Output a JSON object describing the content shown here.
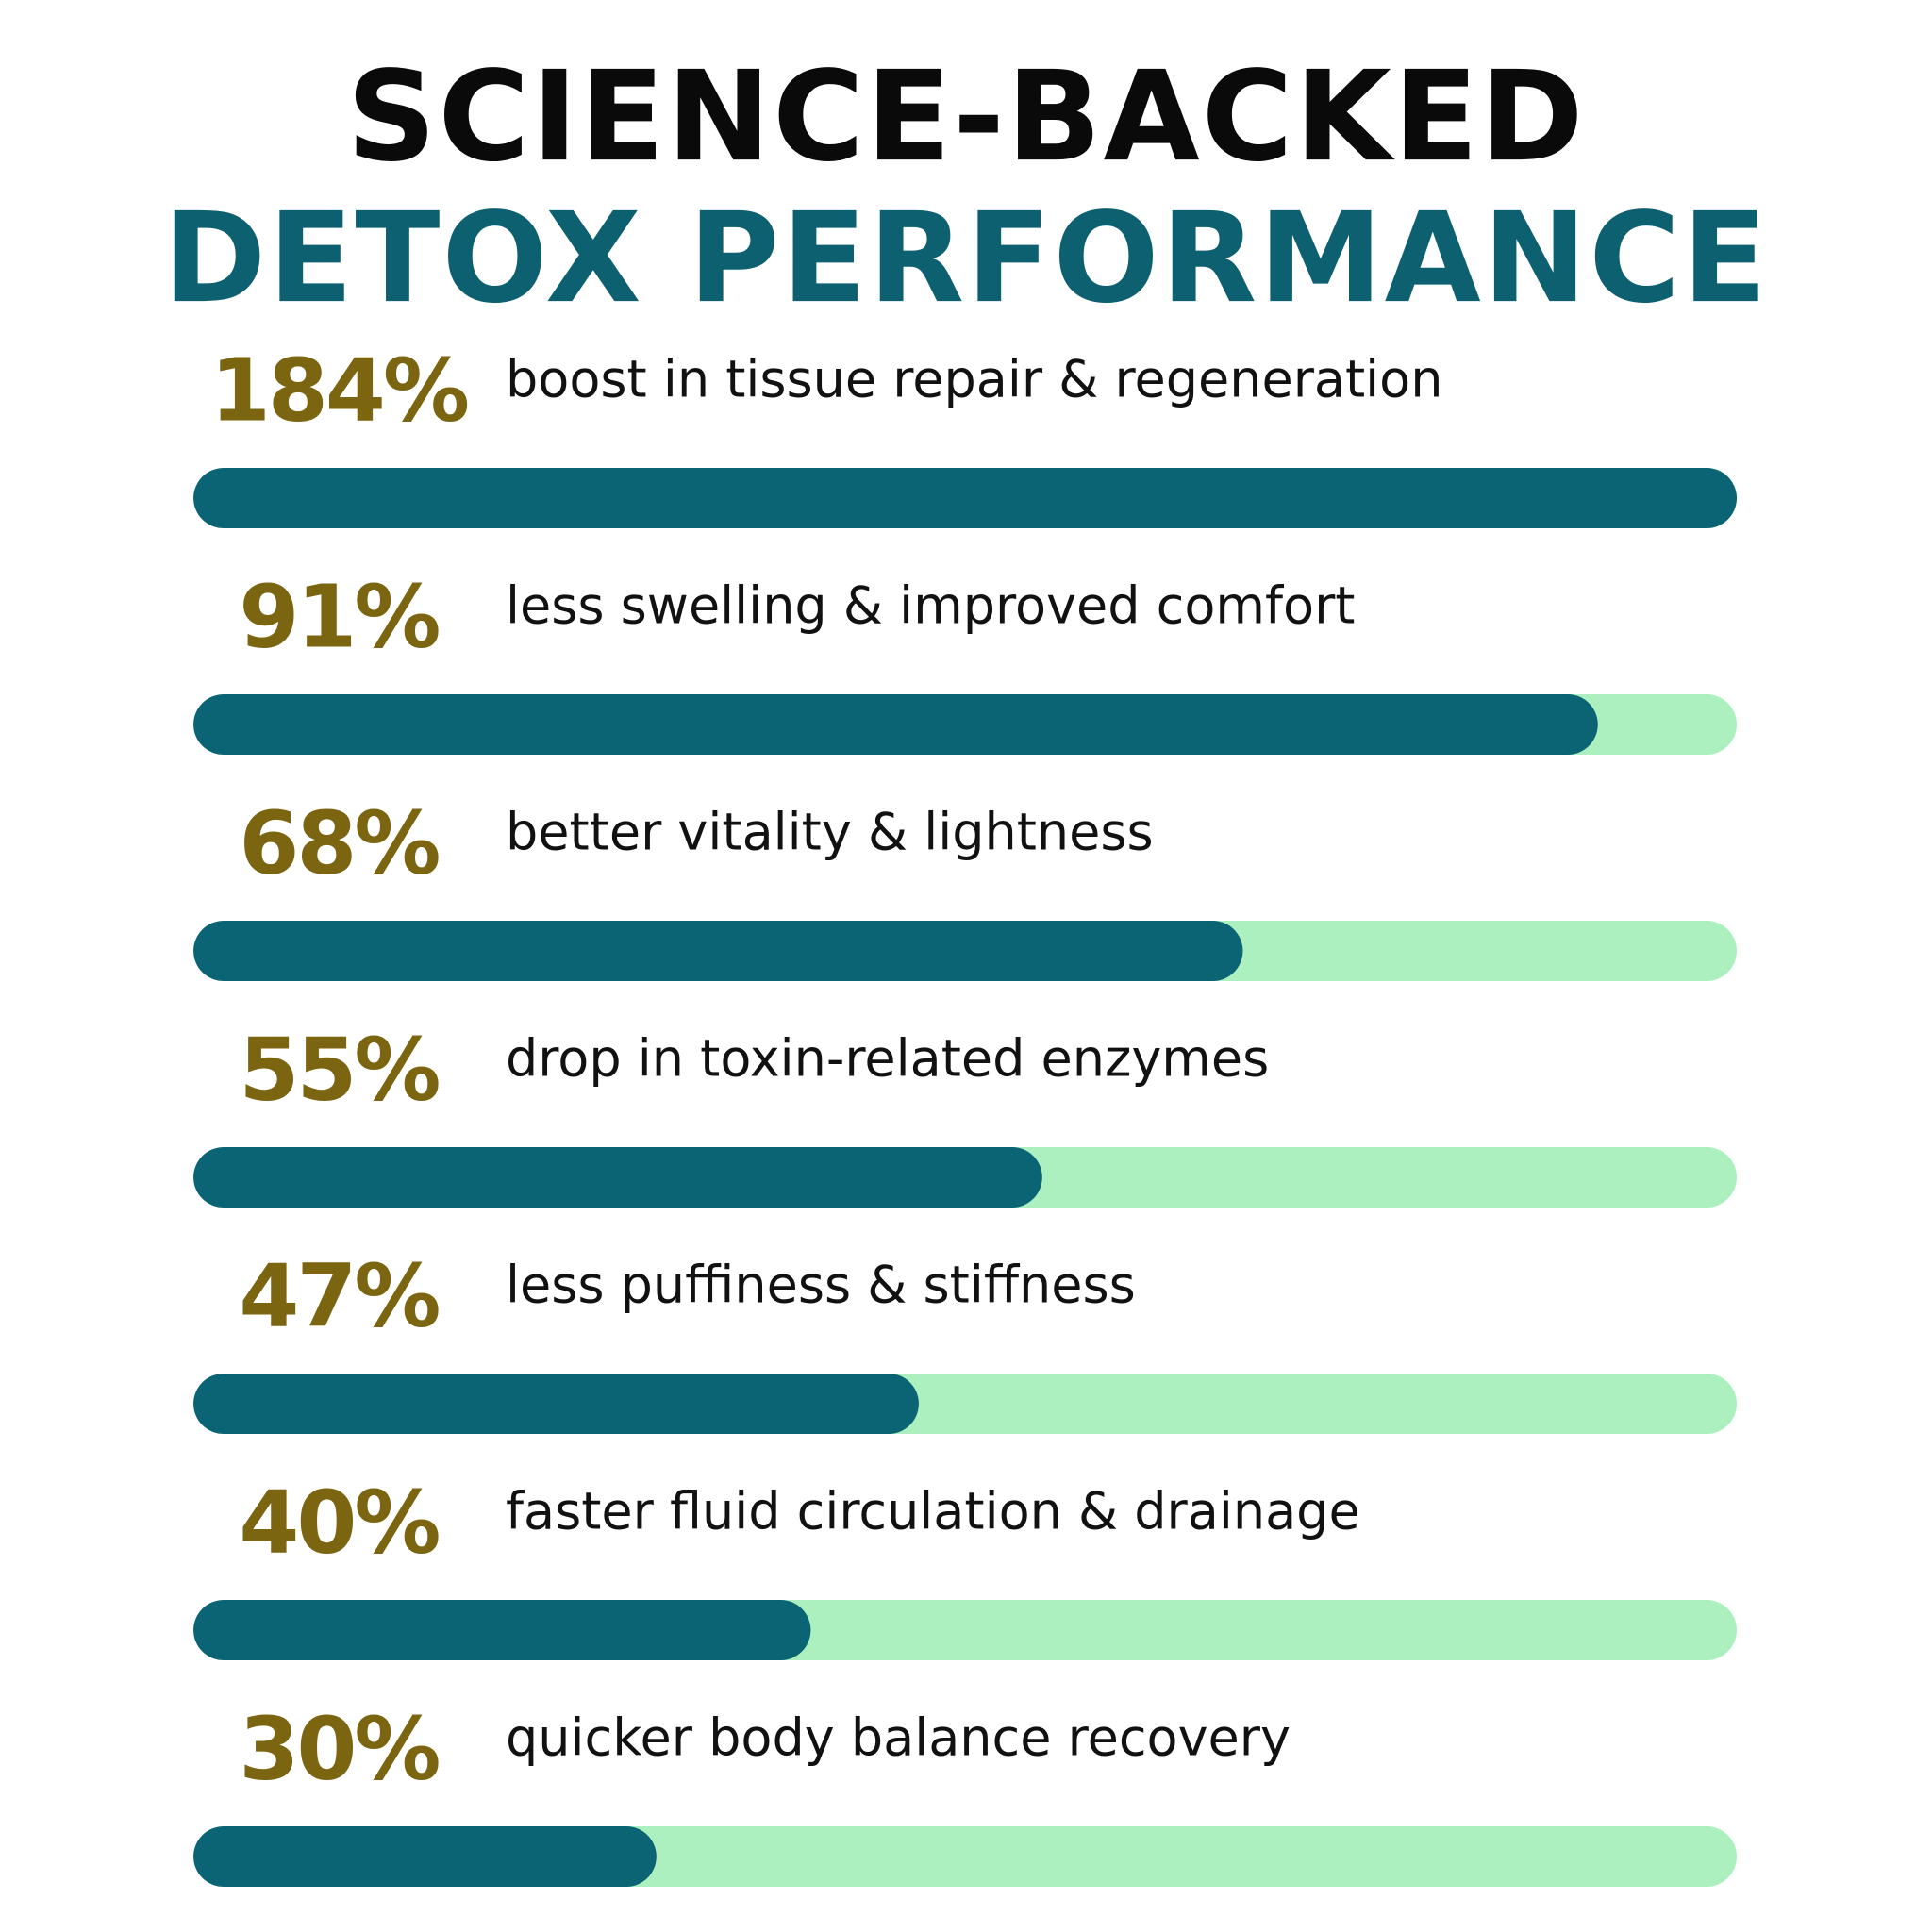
{
  "chart_data": {
    "type": "bar",
    "orientation": "horizontal",
    "title": "SCIENCE-BACKED",
    "subtitle": "DETOX PERFORMANCE",
    "categories": [
      "boost in tissue repair & regeneration",
      "less swelling & improved comfort",
      "better vitality & lightness",
      "drop in toxin-related enzymes",
      "less puffiness & stiffness",
      "faster fluid circulation & drainage",
      "quicker body balance recovery"
    ],
    "values": [
      184,
      91,
      68,
      55,
      47,
      40,
      30
    ],
    "value_labels": [
      "184%",
      "91%",
      "68%",
      "55%",
      "47%",
      "40%",
      "30%"
    ],
    "xlim": [
      0,
      100
    ],
    "color": "#0b6474",
    "track_color": "#adf0c0",
    "label_color": "#7c6510"
  }
}
